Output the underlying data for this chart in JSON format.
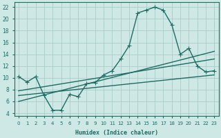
{
  "xlabel": "Humidex (Indice chaleur)",
  "ylabel": "",
  "background_color": "#cde8e5",
  "grid_color": "#aaccc8",
  "line_color": "#1d6b63",
  "xlim": [
    -0.5,
    23.5
  ],
  "ylim": [
    3.5,
    22.8
  ],
  "xticks": [
    0,
    1,
    2,
    3,
    4,
    5,
    6,
    7,
    8,
    9,
    10,
    11,
    12,
    13,
    14,
    15,
    16,
    17,
    18,
    19,
    20,
    21,
    22,
    23
  ],
  "yticks": [
    4,
    6,
    8,
    10,
    12,
    14,
    16,
    18,
    20,
    22
  ],
  "curve1_x": [
    0,
    1,
    2,
    3,
    4,
    5,
    6,
    7,
    8,
    9,
    10,
    11,
    12,
    13,
    14,
    15,
    16,
    17,
    18,
    19,
    20,
    21,
    22,
    23
  ],
  "curve1_y": [
    10.2,
    9.3,
    10.2,
    7.0,
    4.5,
    4.5,
    7.2,
    6.8,
    9.0,
    9.2,
    10.5,
    11.2,
    13.2,
    15.5,
    21.0,
    21.5,
    22.0,
    21.5,
    19.0,
    14.0,
    15.0,
    12.0,
    11.0,
    11.2
  ],
  "line1_x": [
    0,
    23
  ],
  "line1_y": [
    6.0,
    14.5
  ],
  "line2_x": [
    0,
    23
  ],
  "line2_y": [
    7.8,
    13.2
  ],
  "line3_x": [
    0,
    23
  ],
  "line3_y": [
    7.0,
    10.5
  ],
  "markersize": 3,
  "linewidth": 1.0
}
